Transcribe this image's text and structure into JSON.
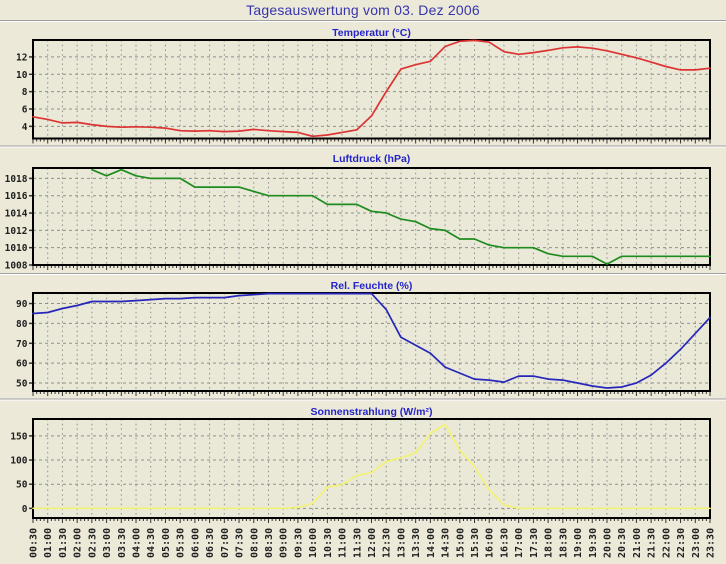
{
  "header": {
    "title": "Tagesauswertung vom 03. Dez 2006"
  },
  "times": [
    "00:30",
    "01:00",
    "01:30",
    "02:00",
    "02:30",
    "03:00",
    "03:30",
    "04:00",
    "04:30",
    "05:00",
    "05:30",
    "06:00",
    "06:30",
    "07:00",
    "07:30",
    "08:00",
    "08:30",
    "09:00",
    "09:30",
    "10:00",
    "10:30",
    "11:00",
    "11:30",
    "12:00",
    "12:30",
    "13:00",
    "13:30",
    "14:00",
    "14:30",
    "15:00",
    "15:30",
    "16:00",
    "16:30",
    "17:00",
    "17:30",
    "18:00",
    "18:30",
    "19:00",
    "19:30",
    "20:00",
    "20:30",
    "21:00",
    "21:30",
    "22:00",
    "22:30",
    "23:00",
    "23:30"
  ],
  "palette": {
    "page_bg": "#ece9d8",
    "plot_bg": "#eae8d7",
    "grid": "#8f8f8f",
    "frame": "#000000",
    "tick_text": "#1f1f1f",
    "chart_title": "#2424c8",
    "header_title": "#3535ad",
    "divider": "#a0a0a0"
  },
  "chart_data": [
    {
      "id": "temperature",
      "type": "line",
      "title": "Temperatur (°C)",
      "color": "#dd3333",
      "yticks": [
        4,
        6,
        8,
        10,
        12
      ],
      "ylim": [
        2.6,
        13.95
      ],
      "values": [
        5.1,
        4.8,
        4.4,
        4.45,
        4.2,
        4.0,
        3.9,
        3.95,
        3.9,
        3.8,
        3.5,
        3.45,
        3.5,
        3.4,
        3.45,
        3.65,
        3.5,
        3.4,
        3.3,
        2.85,
        3.0,
        3.3,
        3.6,
        5.2,
        8.0,
        10.6,
        11.1,
        11.5,
        13.2,
        13.8,
        13.9,
        13.7,
        12.6,
        12.3,
        12.5,
        12.75,
        13.05,
        13.15,
        13.0,
        12.7,
        12.3,
        11.9,
        11.4,
        10.9,
        10.5,
        10.5,
        10.7
      ]
    },
    {
      "id": "pressure",
      "type": "line",
      "title": "Luftdruck (hPa)",
      "color": "#1e8c1e",
      "yticks": [
        1008,
        1010,
        1012,
        1014,
        1016,
        1018
      ],
      "ylim": [
        1008,
        1019.2
      ],
      "values": [
        null,
        null,
        null,
        null,
        1019,
        1018.3,
        1019,
        1018.3,
        1018,
        1018,
        1018,
        1017,
        1017,
        1017,
        1017,
        1016.5,
        1016,
        1016,
        1016,
        1016,
        1015,
        1015,
        1015,
        1014.2,
        1014,
        1013.3,
        1013,
        1012.2,
        1012,
        1011,
        1011,
        1010.3,
        1010,
        1010,
        1010,
        1009.3,
        1009,
        1009,
        1009,
        1008.1,
        1009,
        1009,
        1009,
        1009,
        1009,
        1009,
        1009
      ]
    },
    {
      "id": "humidity",
      "type": "line",
      "title": "Rel. Feuchte (%)",
      "color": "#2626bb",
      "yticks": [
        50,
        60,
        70,
        80,
        90
      ],
      "ylim": [
        46,
        95.3
      ],
      "values": [
        85,
        85.5,
        87.5,
        89,
        91,
        91,
        91,
        91.5,
        92,
        92.5,
        92.5,
        93,
        93,
        93,
        94,
        94.5,
        95,
        95,
        95,
        95,
        95,
        95,
        95,
        95,
        87,
        73,
        69,
        65,
        58,
        55,
        52,
        51.5,
        50.5,
        53.5,
        53.5,
        52,
        51.5,
        50,
        48.5,
        47.5,
        48,
        50,
        54,
        60,
        67,
        75,
        83
      ]
    },
    {
      "id": "solar",
      "type": "line",
      "title": "Sonnenstrahlung (W/m²)",
      "color": "#f2f276",
      "yticks": [
        0,
        50,
        100,
        150
      ],
      "ylim": [
        -20,
        185
      ],
      "values": [
        0,
        0,
        0,
        0,
        0,
        0,
        0,
        0,
        0,
        0,
        0,
        0,
        0,
        0,
        0,
        0,
        0,
        0,
        2,
        10,
        44,
        49,
        68,
        74,
        97,
        104,
        115,
        155,
        174,
        120,
        86,
        38,
        7,
        0,
        0,
        0,
        0,
        0,
        0,
        0,
        0,
        0,
        0,
        0,
        0,
        0,
        0
      ]
    }
  ]
}
